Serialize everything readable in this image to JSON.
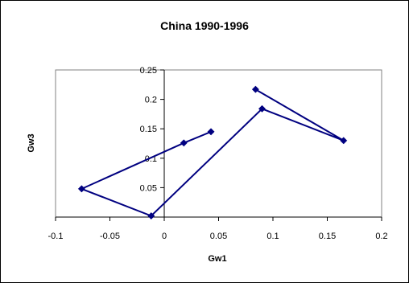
{
  "chart_data": {
    "type": "line",
    "title": "China 1990-1996",
    "xlabel": "Gw1",
    "ylabel": "Gw3",
    "xlim": [
      -0.1,
      0.2
    ],
    "ylim": [
      0,
      0.25
    ],
    "x_ticks": [
      "-0.1",
      "-0.05",
      "0",
      "0.05",
      "0.1",
      "0.15",
      "0.2"
    ],
    "y_ticks": [
      "0.05",
      "0.1",
      "0.15",
      "0.2",
      "0.25"
    ],
    "grid": false,
    "legend": "none",
    "series": [
      {
        "color": "#000080",
        "marker": "diamond",
        "points": [
          {
            "x": 0.043,
            "y": 0.145
          },
          {
            "x": 0.018,
            "y": 0.126
          },
          {
            "x": -0.076,
            "y": 0.048
          },
          {
            "x": -0.012,
            "y": 0.002
          },
          {
            "x": 0.09,
            "y": 0.184
          },
          {
            "x": 0.165,
            "y": 0.13
          },
          {
            "x": 0.084,
            "y": 0.217
          }
        ]
      }
    ]
  }
}
